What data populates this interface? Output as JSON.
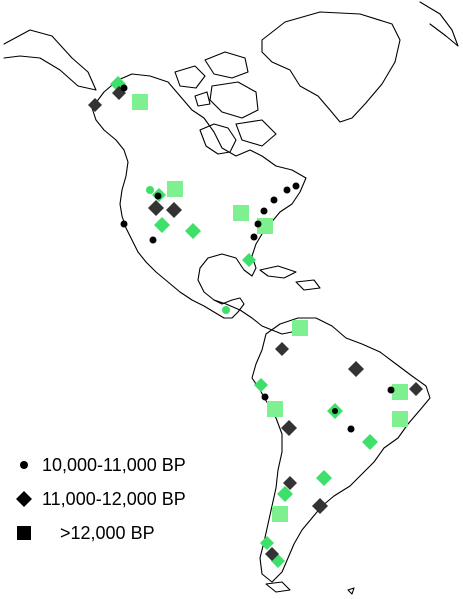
{
  "legend": {
    "items": [
      {
        "symbol": "circle",
        "label": "10,000-11,000 BP"
      },
      {
        "symbol": "diamond",
        "label": "11,000-12,000 BP"
      },
      {
        "symbol": "square",
        "label": ">12,000 BP"
      }
    ]
  },
  "colors": {
    "land_outline": "#000000",
    "site_dark": "#000000",
    "diamond_dark": "#333333",
    "site_green": "#3ee06a",
    "site_green_light": "#7ef08f"
  }
}
